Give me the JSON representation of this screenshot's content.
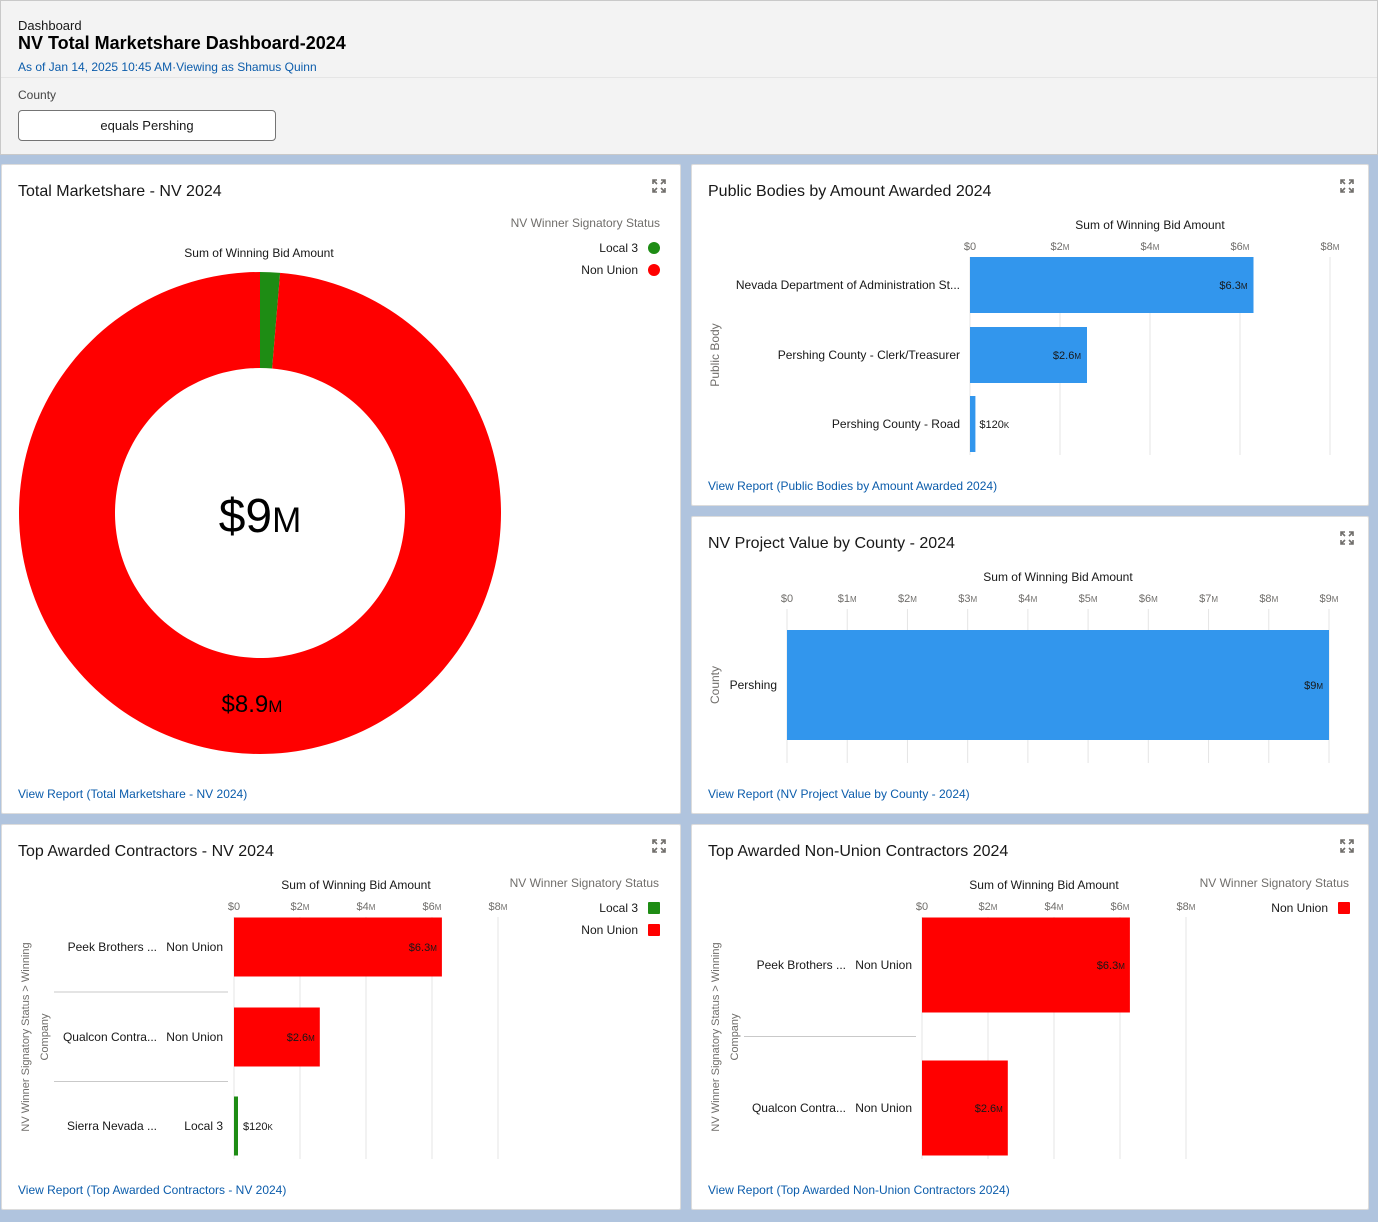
{
  "header": {
    "kicker": "Dashboard",
    "title": "NV Total Marketshare Dashboard-2024",
    "subtitle": "As of Jan 14, 2025 10:45 AM·Viewing as Shamus Quinn",
    "filter_label": "County",
    "filter_value": "equals Pershing"
  },
  "colors": {
    "local3": "#1e8c14",
    "non_union": "#ff0000",
    "bar_blue": "#3296ed",
    "link": "#0b5cab"
  },
  "cards": {
    "marketshare": {
      "title": "Total Marketshare - NV 2024",
      "link": "View Report (Total Marketshare - NV 2024)",
      "chart_label": "Sum of Winning Bid Amount",
      "legend_title": "NV Winner Signatory Status",
      "legend": [
        "Local 3",
        "Non Union"
      ],
      "center_label": "$9",
      "center_unit": "M",
      "slice_label": "$8.9",
      "slice_unit": "M"
    },
    "public_bodies": {
      "title": "Public Bodies by Amount Awarded 2024",
      "link": "View Report (Public Bodies by Amount Awarded 2024)",
      "axis_title": "Sum of Winning Bid Amount",
      "y_title": "Public Body"
    },
    "county": {
      "title": "NV Project Value by County - 2024",
      "link": "View Report (NV Project Value by County - 2024)",
      "axis_title": "Sum of Winning Bid Amount",
      "y_title": "County"
    },
    "top_contractors": {
      "title": "Top Awarded Contractors - NV 2024",
      "link": "View Report (Top Awarded Contractors - NV 2024)",
      "axis_title": "Sum of Winning Bid Amount",
      "y_title_1": "NV Winner Signatory Status  >  Winning",
      "y_title_2": "Company",
      "legend_title": "NV Winner Signatory Status",
      "legend": [
        "Local 3",
        "Non Union"
      ]
    },
    "non_union": {
      "title": "Top Awarded Non-Union Contractors 2024",
      "link": "View Report (Top Awarded Non-Union Contractors 2024)",
      "axis_title": "Sum of Winning Bid Amount",
      "y_title_1": "NV Winner Signatory Status  >  Winning",
      "y_title_2": "Company",
      "legend_title": "NV Winner Signatory Status",
      "legend": [
        "Non Union"
      ]
    }
  },
  "chart_data": [
    {
      "type": "pie",
      "title": "Total Marketshare - NV 2024",
      "value_label": "Sum of Winning Bid Amount",
      "unit": "$M",
      "total": 9,
      "slices": [
        {
          "name": "Local 3",
          "value": 0.12,
          "color": "#1e8c14"
        },
        {
          "name": "Non Union",
          "value": 8.9,
          "color": "#ff0000",
          "label": "$8.9M"
        }
      ]
    },
    {
      "type": "bar",
      "orientation": "horizontal",
      "title": "Public Bodies by Amount Awarded 2024",
      "xlabel": "Sum of Winning Bid Amount",
      "ylabel": "Public Body",
      "unit": "$M",
      "xlim": [
        0,
        8
      ],
      "ticks": [
        "$0",
        "$2M",
        "$4M",
        "$6M",
        "$8M"
      ],
      "categories": [
        "Nevada Department of Administration St...",
        "Pershing County - Clerk/Treasurer",
        "Pershing County - Road"
      ],
      "values": [
        6.3,
        2.6,
        0.12
      ],
      "labels": [
        "$6.3M",
        "$2.6M",
        "$120K"
      ]
    },
    {
      "type": "bar",
      "orientation": "horizontal",
      "title": "NV Project Value by County - 2024",
      "xlabel": "Sum of Winning Bid Amount",
      "ylabel": "County",
      "unit": "$M",
      "xlim": [
        0,
        9
      ],
      "ticks": [
        "$0",
        "$1M",
        "$2M",
        "$3M",
        "$4M",
        "$5M",
        "$6M",
        "$7M",
        "$8M",
        "$9M"
      ],
      "categories": [
        "Pershing"
      ],
      "values": [
        9
      ],
      "labels": [
        "$9M"
      ]
    },
    {
      "type": "bar",
      "orientation": "horizontal",
      "title": "Top Awarded Contractors - NV 2024",
      "xlabel": "Sum of Winning Bid Amount",
      "ylabel": "NV Winner Signatory Status > Winning Company",
      "unit": "$M",
      "xlim": [
        0,
        8
      ],
      "ticks": [
        "$0",
        "$2M",
        "$4M",
        "$6M",
        "$8M"
      ],
      "rows": [
        {
          "company": "Peek Brothers ...",
          "status": "Non Union",
          "value": 6.3,
          "label": "$6.3M"
        },
        {
          "company": "Qualcon Contra...",
          "status": "Non Union",
          "value": 2.6,
          "label": "$2.6M"
        },
        {
          "company": "Sierra Nevada ...",
          "status": "Local 3",
          "value": 0.12,
          "label": "$120K"
        }
      ]
    },
    {
      "type": "bar",
      "orientation": "horizontal",
      "title": "Top Awarded Non-Union Contractors 2024",
      "xlabel": "Sum of Winning Bid Amount",
      "ylabel": "NV Winner Signatory Status > Winning Company",
      "unit": "$M",
      "xlim": [
        0,
        8
      ],
      "ticks": [
        "$0",
        "$2M",
        "$4M",
        "$6M",
        "$8M"
      ],
      "rows": [
        {
          "company": "Peek Brothers ...",
          "status": "Non Union",
          "value": 6.3,
          "label": "$6.3M"
        },
        {
          "company": "Qualcon Contra...",
          "status": "Non Union",
          "value": 2.6,
          "label": "$2.6M"
        }
      ]
    }
  ]
}
